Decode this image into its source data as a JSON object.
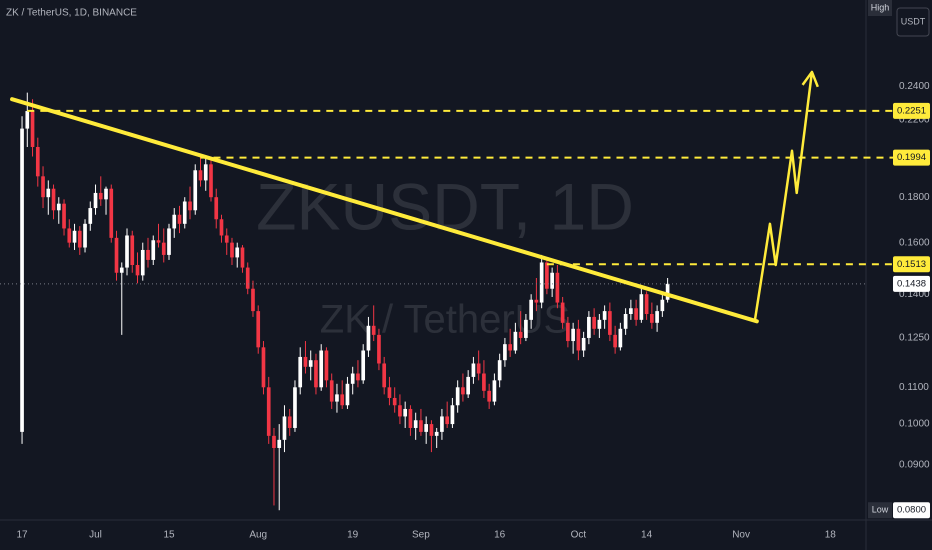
{
  "chart_data": {
    "type": "candlestick",
    "title": "ZK / TetherUS, 1D, BINANCE",
    "watermark": "ZKUSDT, 1D",
    "watermark_subtitle": "ZK / TetherUS",
    "currency": "USDT",
    "high_tag": "High",
    "low_tag": {
      "text": "Low",
      "value": 0.08,
      "label": "0.0800"
    },
    "log_scale": true,
    "grid": false,
    "up_color": "#ffffff",
    "down_color": "#f23645",
    "line_color": "#ffeb3b",
    "xlim": [
      -4.2,
      160.8
    ],
    "xticks": [
      {
        "value": 0,
        "label": "17"
      },
      {
        "value": 14,
        "label": "Jul"
      },
      {
        "value": 28,
        "label": "15"
      },
      {
        "value": 45,
        "label": "Aug"
      },
      {
        "value": 63,
        "label": "19"
      },
      {
        "value": 76,
        "label": "Sep"
      },
      {
        "value": 91,
        "label": "16"
      },
      {
        "value": 106,
        "label": "Oct"
      },
      {
        "value": 119,
        "label": "14"
      },
      {
        "value": 137,
        "label": "Nov"
      },
      {
        "value": 154,
        "label": "18"
      }
    ],
    "ylim": [
      0.078,
      0.3
    ],
    "yticks": [
      {
        "value": 0.24,
        "label": "0.2400"
      },
      {
        "value": 0.22,
        "label": "0.2200"
      },
      {
        "value": 0.18,
        "label": "0.1800"
      },
      {
        "value": 0.16,
        "label": "0.1600"
      },
      {
        "value": 0.14,
        "label": "0.1400"
      },
      {
        "value": 0.125,
        "label": "0.1250"
      },
      {
        "value": 0.11,
        "label": "0.1100"
      },
      {
        "value": 0.1,
        "label": "0.1000"
      },
      {
        "value": 0.09,
        "label": "0.0900"
      }
    ],
    "levels": [
      {
        "value": 0.2251,
        "from": 1
      },
      {
        "value": 0.1994,
        "from": 34
      },
      {
        "value": 0.1513,
        "from": 100
      }
    ],
    "current_price": 0.1438,
    "trendline": [
      [
        -1.9,
        0.232
      ],
      [
        140,
        0.1305
      ]
    ],
    "projection": [
      [
        139.6,
        0.1305
      ],
      [
        142.5,
        0.168
      ],
      [
        143.6,
        0.151
      ],
      [
        146.7,
        0.203
      ],
      [
        147.6,
        0.182
      ],
      [
        150.5,
        0.249
      ]
    ],
    "candles": [
      [
        0.098,
        0.222,
        0.095,
        0.215
      ],
      [
        0.215,
        0.236,
        0.205,
        0.225
      ],
      [
        0.225,
        0.232,
        0.2,
        0.205
      ],
      [
        0.205,
        0.21,
        0.185,
        0.19
      ],
      [
        0.19,
        0.195,
        0.175,
        0.18
      ],
      [
        0.18,
        0.188,
        0.172,
        0.184
      ],
      [
        0.184,
        0.186,
        0.17,
        0.174
      ],
      [
        0.174,
        0.18,
        0.168,
        0.177
      ],
      [
        0.177,
        0.179,
        0.163,
        0.166
      ],
      [
        0.166,
        0.17,
        0.158,
        0.16
      ],
      [
        0.16,
        0.168,
        0.157,
        0.165
      ],
      [
        0.165,
        0.167,
        0.155,
        0.158
      ],
      [
        0.158,
        0.17,
        0.156,
        0.168
      ],
      [
        0.168,
        0.178,
        0.165,
        0.175
      ],
      [
        0.175,
        0.186,
        0.172,
        0.182
      ],
      [
        0.182,
        0.19,
        0.176,
        0.179
      ],
      [
        0.179,
        0.185,
        0.172,
        0.184
      ],
      [
        0.184,
        0.186,
        0.16,
        0.162
      ],
      [
        0.162,
        0.165,
        0.145,
        0.148
      ],
      [
        0.148,
        0.152,
        0.126,
        0.15
      ],
      [
        0.15,
        0.166,
        0.147,
        0.163
      ],
      [
        0.163,
        0.165,
        0.148,
        0.151
      ],
      [
        0.151,
        0.156,
        0.144,
        0.147
      ],
      [
        0.147,
        0.16,
        0.145,
        0.157
      ],
      [
        0.157,
        0.162,
        0.15,
        0.153
      ],
      [
        0.153,
        0.163,
        0.151,
        0.161
      ],
      [
        0.161,
        0.168,
        0.158,
        0.16
      ],
      [
        0.16,
        0.166,
        0.152,
        0.155
      ],
      [
        0.155,
        0.168,
        0.153,
        0.166
      ],
      [
        0.166,
        0.175,
        0.162,
        0.172
      ],
      [
        0.172,
        0.176,
        0.164,
        0.168
      ],
      [
        0.168,
        0.18,
        0.166,
        0.178
      ],
      [
        0.178,
        0.185,
        0.17,
        0.174
      ],
      [
        0.174,
        0.196,
        0.172,
        0.193
      ],
      [
        0.193,
        0.201,
        0.185,
        0.188
      ],
      [
        0.188,
        0.2,
        0.183,
        0.196
      ],
      [
        0.196,
        0.199,
        0.178,
        0.18
      ],
      [
        0.18,
        0.184,
        0.166,
        0.17
      ],
      [
        0.17,
        0.172,
        0.16,
        0.163
      ],
      [
        0.163,
        0.166,
        0.155,
        0.16
      ],
      [
        0.16,
        0.162,
        0.151,
        0.154
      ],
      [
        0.154,
        0.16,
        0.15,
        0.158
      ],
      [
        0.158,
        0.159,
        0.148,
        0.15
      ],
      [
        0.15,
        0.152,
        0.14,
        0.142
      ],
      [
        0.142,
        0.145,
        0.132,
        0.134
      ],
      [
        0.134,
        0.136,
        0.12,
        0.122
      ],
      [
        0.122,
        0.124,
        0.108,
        0.11
      ],
      [
        0.11,
        0.113,
        0.095,
        0.097
      ],
      [
        0.097,
        0.099,
        0.081,
        0.094
      ],
      [
        0.094,
        0.1,
        0.08,
        0.096
      ],
      [
        0.096,
        0.105,
        0.093,
        0.102
      ],
      [
        0.102,
        0.104,
        0.097,
        0.099
      ],
      [
        0.099,
        0.112,
        0.098,
        0.11
      ],
      [
        0.11,
        0.122,
        0.108,
        0.119
      ],
      [
        0.119,
        0.124,
        0.114,
        0.116
      ],
      [
        0.116,
        0.121,
        0.112,
        0.118
      ],
      [
        0.118,
        0.12,
        0.108,
        0.11
      ],
      [
        0.11,
        0.123,
        0.109,
        0.121
      ],
      [
        0.121,
        0.122,
        0.11,
        0.112
      ],
      [
        0.112,
        0.114,
        0.104,
        0.106
      ],
      [
        0.106,
        0.111,
        0.103,
        0.108
      ],
      [
        0.108,
        0.112,
        0.104,
        0.105
      ],
      [
        0.105,
        0.113,
        0.104,
        0.111
      ],
      [
        0.111,
        0.116,
        0.108,
        0.114
      ],
      [
        0.114,
        0.118,
        0.11,
        0.112
      ],
      [
        0.112,
        0.123,
        0.111,
        0.121
      ],
      [
        0.121,
        0.132,
        0.119,
        0.129
      ],
      [
        0.129,
        0.136,
        0.124,
        0.126
      ],
      [
        0.126,
        0.128,
        0.115,
        0.117
      ],
      [
        0.117,
        0.119,
        0.108,
        0.11
      ],
      [
        0.11,
        0.113,
        0.105,
        0.107
      ],
      [
        0.107,
        0.11,
        0.103,
        0.105
      ],
      [
        0.105,
        0.108,
        0.1,
        0.102
      ],
      [
        0.102,
        0.106,
        0.099,
        0.104
      ],
      [
        0.104,
        0.105,
        0.097,
        0.099
      ],
      [
        0.099,
        0.103,
        0.096,
        0.101
      ],
      [
        0.101,
        0.104,
        0.097,
        0.098
      ],
      [
        0.098,
        0.102,
        0.095,
        0.1
      ],
      [
        0.1,
        0.101,
        0.093,
        0.097
      ],
      [
        0.097,
        0.099,
        0.094,
        0.098
      ],
      [
        0.098,
        0.104,
        0.096,
        0.102
      ],
      [
        0.102,
        0.106,
        0.099,
        0.1
      ],
      [
        0.1,
        0.107,
        0.099,
        0.105
      ],
      [
        0.105,
        0.112,
        0.103,
        0.11
      ],
      [
        0.11,
        0.114,
        0.106,
        0.108
      ],
      [
        0.108,
        0.115,
        0.107,
        0.113
      ],
      [
        0.113,
        0.119,
        0.111,
        0.117
      ],
      [
        0.117,
        0.121,
        0.112,
        0.114
      ],
      [
        0.114,
        0.118,
        0.107,
        0.109
      ],
      [
        0.109,
        0.111,
        0.104,
        0.106
      ],
      [
        0.106,
        0.114,
        0.105,
        0.112
      ],
      [
        0.112,
        0.12,
        0.11,
        0.118
      ],
      [
        0.118,
        0.125,
        0.116,
        0.123
      ],
      [
        0.123,
        0.128,
        0.119,
        0.121
      ],
      [
        0.121,
        0.13,
        0.12,
        0.127
      ],
      [
        0.127,
        0.134,
        0.123,
        0.125
      ],
      [
        0.125,
        0.133,
        0.124,
        0.131
      ],
      [
        0.131,
        0.14,
        0.128,
        0.138
      ],
      [
        0.138,
        0.146,
        0.134,
        0.137
      ],
      [
        0.137,
        0.155,
        0.135,
        0.152
      ],
      [
        0.152,
        0.153,
        0.14,
        0.142
      ],
      [
        0.142,
        0.15,
        0.139,
        0.148
      ],
      [
        0.148,
        0.151,
        0.135,
        0.137
      ],
      [
        0.137,
        0.139,
        0.128,
        0.13
      ],
      [
        0.13,
        0.132,
        0.122,
        0.124
      ],
      [
        0.124,
        0.13,
        0.12,
        0.128
      ],
      [
        0.128,
        0.131,
        0.118,
        0.121
      ],
      [
        0.121,
        0.127,
        0.119,
        0.125
      ],
      [
        0.125,
        0.134,
        0.123,
        0.132
      ],
      [
        0.132,
        0.135,
        0.126,
        0.128
      ],
      [
        0.128,
        0.133,
        0.125,
        0.131
      ],
      [
        0.131,
        0.136,
        0.128,
        0.134
      ],
      [
        0.134,
        0.137,
        0.124,
        0.126
      ],
      [
        0.126,
        0.129,
        0.12,
        0.122
      ],
      [
        0.122,
        0.13,
        0.121,
        0.128
      ],
      [
        0.128,
        0.135,
        0.126,
        0.133
      ],
      [
        0.133,
        0.138,
        0.131,
        0.135
      ],
      [
        0.135,
        0.138,
        0.129,
        0.131
      ],
      [
        0.131,
        0.142,
        0.13,
        0.14
      ],
      [
        0.14,
        0.141,
        0.131,
        0.133
      ],
      [
        0.133,
        0.137,
        0.128,
        0.13
      ],
      [
        0.13,
        0.136,
        0.127,
        0.134
      ],
      [
        0.134,
        0.14,
        0.132,
        0.138
      ],
      [
        0.138,
        0.146,
        0.137,
        0.1438
      ]
    ]
  }
}
